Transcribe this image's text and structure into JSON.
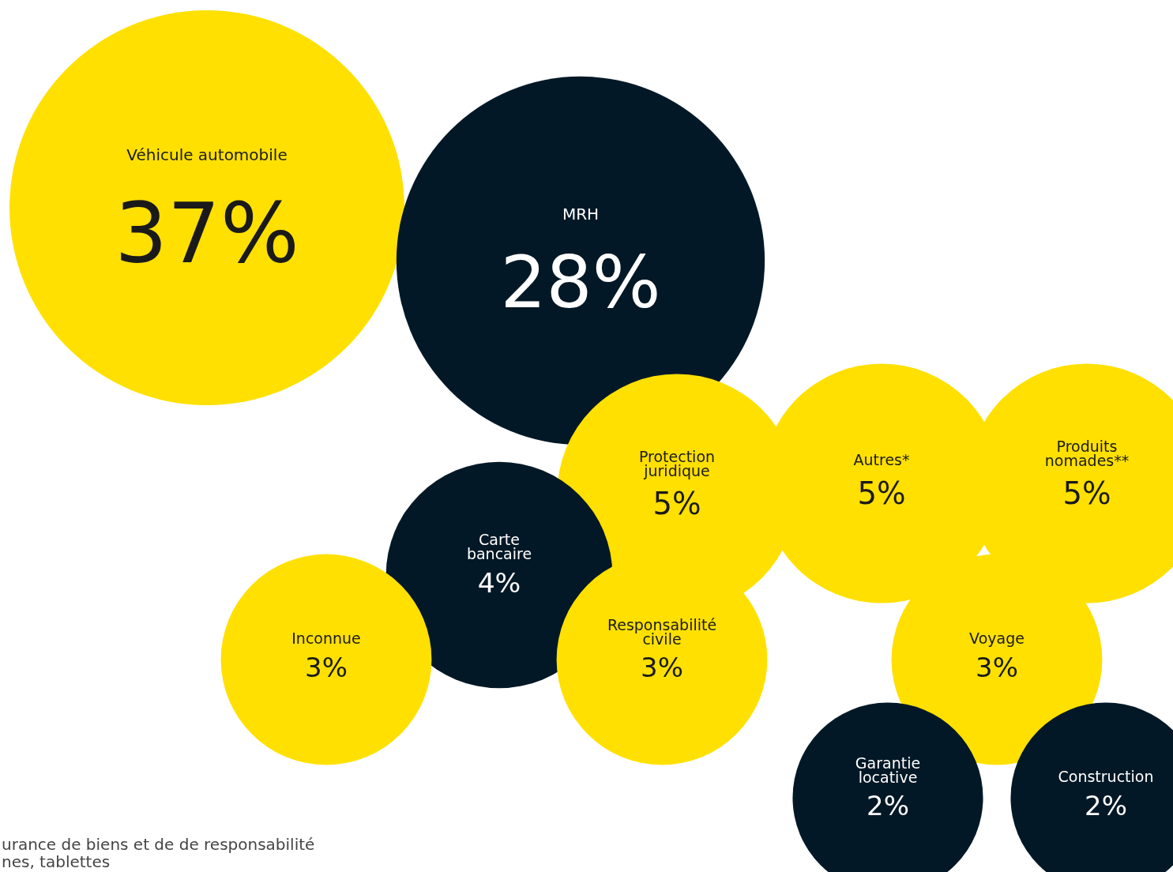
{
  "chart_data": {
    "type": "other",
    "categories": [
      "Véhicule automobile",
      "MRH",
      "Protection juridique",
      "Autres*",
      "Produits nomades**",
      "Carte bancaire",
      "Inconnue",
      "Responsabilité civile",
      "Voyage",
      "Garantie locative",
      "Construction"
    ],
    "values": [
      37,
      28,
      5,
      5,
      5,
      4,
      3,
      3,
      3,
      2,
      2
    ],
    "value_labels": [
      "37%",
      "28%",
      "5%",
      "5%",
      "5%",
      "4%",
      "3%",
      "3%",
      "3%",
      "2%",
      "2%"
    ],
    "colors": [
      "#ffe000",
      "#031826",
      "#ffe000",
      "#ffe000",
      "#ffe000",
      "#031826",
      "#ffe000",
      "#ffe000",
      "#ffe000",
      "#031826",
      "#031826"
    ],
    "annotations": [
      "urance de biens et de de responsabilité",
      "nes, tablettes"
    ]
  }
}
